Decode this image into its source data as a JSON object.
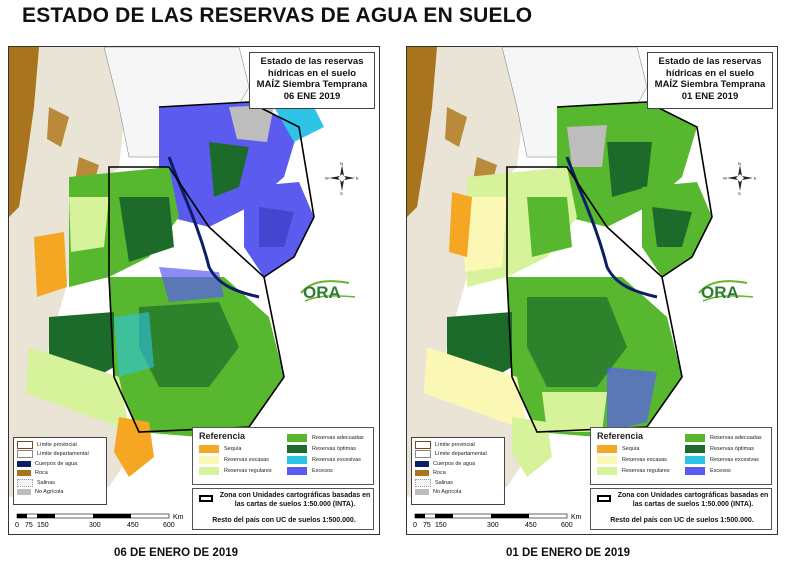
{
  "page": {
    "title": "ESTADO DE LAS RESERVAS DE AGUA EN SUELO"
  },
  "maps": [
    {
      "caption": "06 DE ENERO DE 2019",
      "title_lines": [
        "Estado de las reservas",
        "hídricas en el suelo",
        "MAÍZ Siembra Temprana",
        "06 ENE 2019"
      ]
    },
    {
      "caption": "01 DE ENERO DE 2019",
      "title_lines": [
        "Estado de las reservas",
        "hídricas en el suelo",
        "MAÍZ Siembra Temprana",
        "01 ENE 2019"
      ]
    }
  ],
  "legend_left": [
    {
      "label": "Límite provincial",
      "color": "#ffffff",
      "border": "#7a4a1a"
    },
    {
      "label": "Límite departamental",
      "color": "#ffffff",
      "border": "#888888"
    },
    {
      "label": "Cuerpos de agua",
      "color": "#0b1f66",
      "border": "#0b1f66"
    },
    {
      "label": "Roca",
      "color": "#a8741e",
      "border": "#a8741e"
    },
    {
      "label": "Salinas",
      "color": "#f4f4f4",
      "border": "#999999"
    },
    {
      "label": "No Agrícola",
      "color": "#bdbdbd",
      "border": "#bdbdbd"
    }
  ],
  "legend_main": {
    "title": "Referencia",
    "left_items": [
      {
        "label": "Sequía",
        "color": "#f5a623"
      },
      {
        "label": "Reservas escasas",
        "color": "#fbf7b5"
      },
      {
        "label": "Reservas regulares",
        "color": "#d6f29b"
      }
    ],
    "right_items": [
      {
        "label": "Reservas adecuadas",
        "color": "#57b82f"
      },
      {
        "label": "Reservas óptimas",
        "color": "#1d6b2a"
      },
      {
        "label": "Reservas excesivas",
        "color": "#2ec4e8"
      },
      {
        "label": "Excesos",
        "color": "#5b5bf0"
      }
    ]
  },
  "zone_box": {
    "text": "Zona con Unidades cartográficas basadas en las cartas de suelos 1:50.000 (INTA).",
    "note": "Resto del país con UC de suelos 1:500.000."
  },
  "scale": {
    "unit": "Km",
    "ticks": [
      "0",
      "75",
      "150",
      "300",
      "450",
      "600"
    ]
  },
  "north": {
    "n": "N",
    "s": "S",
    "e": "E",
    "w": "W"
  },
  "logo": {
    "text": "ORA"
  }
}
